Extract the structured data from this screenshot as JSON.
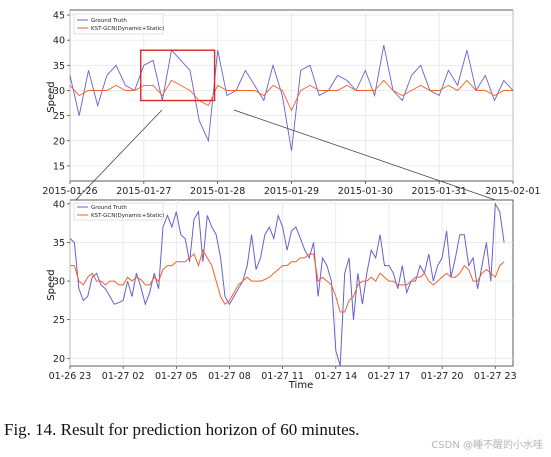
{
  "caption": "Fig. 14.   Result for prediction horizon of 60 minutes.",
  "watermark": "CSDN @睡不醒的小水哇",
  "colors": {
    "truth": "#6a5fd0",
    "pred": "#f0622b",
    "highlight": "#d42a2a",
    "grid": "#e3e3e3"
  },
  "chart_data": [
    {
      "type": "line",
      "title": "",
      "xlabel": "",
      "ylabel": "Speed",
      "xlim": [
        "2015-01-26 00:00",
        "2015-02-01 00:00"
      ],
      "ylim": [
        12,
        46
      ],
      "yticks": [
        15,
        20,
        25,
        30,
        35,
        40,
        45
      ],
      "xticks": [
        "2015-01-26",
        "2015-01-27",
        "2015-01-28",
        "2015-01-29",
        "2015-01-30",
        "2015-01-31",
        "2015-02-01"
      ],
      "grid": true,
      "legend_position": "top-left",
      "series": [
        {
          "name": "Ground Truth",
          "x_hours": [
            0,
            3,
            6,
            9,
            12,
            15,
            18,
            21,
            24,
            27,
            30,
            33,
            36,
            39,
            42,
            45,
            48,
            51,
            54,
            57,
            60,
            63,
            66,
            69,
            72,
            75,
            78,
            81,
            84,
            87,
            90,
            93,
            96,
            99,
            102,
            105,
            108,
            111,
            114,
            117,
            120,
            123,
            126,
            129,
            132,
            135,
            138,
            141,
            144
          ],
          "values": [
            33,
            25,
            34,
            27,
            33,
            35,
            31,
            30,
            35,
            36,
            28,
            38,
            36,
            34,
            24,
            20,
            38,
            29,
            30,
            34,
            31,
            28,
            35,
            29,
            18,
            34,
            35,
            29,
            30,
            33,
            32,
            30,
            34,
            29,
            39,
            30,
            28,
            33,
            35,
            30,
            29,
            34,
            31,
            38,
            30,
            33,
            28,
            32,
            30
          ]
        },
        {
          "name": "KST-GCN(Dynamic+Static)",
          "x_hours": [
            0,
            3,
            6,
            9,
            12,
            15,
            18,
            21,
            24,
            27,
            30,
            33,
            36,
            39,
            42,
            45,
            48,
            51,
            54,
            57,
            60,
            63,
            66,
            69,
            72,
            75,
            78,
            81,
            84,
            87,
            90,
            93,
            96,
            99,
            102,
            105,
            108,
            111,
            114,
            117,
            120,
            123,
            126,
            129,
            132,
            135,
            138,
            141,
            144
          ],
          "values": [
            31,
            29,
            30,
            30,
            30,
            31,
            30,
            30,
            31,
            31,
            29,
            32,
            31,
            30,
            28,
            27,
            31,
            30,
            30,
            30,
            30,
            29,
            31,
            30,
            26,
            30,
            31,
            30,
            30,
            30,
            31,
            30,
            30,
            30,
            32,
            30,
            29,
            30,
            31,
            30,
            30,
            31,
            30,
            32,
            30,
            30,
            29,
            30,
            30
          ]
        }
      ],
      "highlight_window": [
        "2015-01-26 23:00",
        "2015-01-27 23:00"
      ]
    },
    {
      "type": "line",
      "title": "",
      "xlabel": "Time",
      "ylabel": "Speed",
      "xlim": [
        "2015-01-26 23:00",
        "2015-01-28 00:00"
      ],
      "ylim": [
        19,
        40.5
      ],
      "yticks": [
        20,
        25,
        30,
        35,
        40
      ],
      "xticks": [
        "01-26 23",
        "01-27 02",
        "01-27 05",
        "01-27 08",
        "01-27 11",
        "01-27 14",
        "01-27 17",
        "01-27 20",
        "01-27 23"
      ],
      "grid": true,
      "legend_position": "top-left",
      "series": [
        {
          "name": "Ground Truth",
          "x_hours": [
            23,
            23.25,
            23.5,
            23.75,
            24,
            24.25,
            24.5,
            24.75,
            25,
            25.25,
            25.5,
            25.75,
            26,
            26.25,
            26.5,
            26.75,
            27,
            27.25,
            27.5,
            27.75,
            28,
            28.25,
            28.5,
            28.75,
            29,
            29.25,
            29.5,
            29.75,
            30,
            30.25,
            30.5,
            30.75,
            31,
            31.25,
            31.5,
            31.75,
            32,
            32.25,
            32.5,
            32.75,
            33,
            33.25,
            33.5,
            33.75,
            34,
            34.25,
            34.5,
            34.75,
            35,
            35.25,
            35.5,
            35.75,
            36,
            36.25,
            36.5,
            36.75,
            37,
            37.25,
            37.5,
            37.75,
            38,
            38.25,
            38.5,
            38.75,
            39,
            39.25,
            39.5,
            39.75,
            40,
            40.25,
            40.5,
            40.75,
            41,
            41.25,
            41.5,
            41.75,
            42,
            42.25,
            42.5,
            42.75,
            43,
            43.25,
            43.5,
            43.75,
            44,
            44.25,
            44.5,
            44.75,
            45,
            45.25,
            45.5,
            45.75,
            46,
            46.25,
            46.5,
            46.75,
            47,
            47.25,
            47.5
          ],
          "values": [
            35.5,
            35,
            29,
            27.5,
            28,
            30.5,
            31,
            29.5,
            29,
            28,
            27,
            27.2,
            27.5,
            30,
            28,
            31,
            29.2,
            27,
            28.5,
            31,
            29,
            37,
            38.5,
            37,
            39,
            36,
            35.5,
            32.5,
            38,
            39,
            32.5,
            38.5,
            37,
            36,
            33,
            28,
            27,
            28,
            29,
            30,
            32,
            36,
            31.5,
            33,
            36,
            37,
            35.5,
            38.5,
            37,
            34,
            36.5,
            37,
            35.5,
            34,
            33,
            35,
            28,
            33,
            32,
            30,
            21,
            19,
            31,
            33,
            25,
            31,
            27,
            31,
            34,
            33,
            36,
            32,
            32,
            31,
            29,
            32,
            28.5,
            30,
            30,
            32,
            31,
            33.5,
            30,
            32,
            33,
            36.5,
            30.5,
            33,
            36,
            36,
            32,
            33,
            29,
            32,
            35,
            30,
            40,
            39,
            35
          ]
        },
        {
          "name": "KST-GCN(Dynamic+Static)",
          "x_hours": [
            23,
            23.25,
            23.5,
            23.75,
            24,
            24.25,
            24.5,
            24.75,
            25,
            25.25,
            25.5,
            25.75,
            26,
            26.25,
            26.5,
            26.75,
            27,
            27.25,
            27.5,
            27.75,
            28,
            28.25,
            28.5,
            28.75,
            29,
            29.25,
            29.5,
            29.75,
            30,
            30.25,
            30.5,
            30.75,
            31,
            31.25,
            31.5,
            31.75,
            32,
            32.25,
            32.5,
            32.75,
            33,
            33.25,
            33.5,
            33.75,
            34,
            34.25,
            34.5,
            34.75,
            35,
            35.25,
            35.5,
            35.75,
            36,
            36.25,
            36.5,
            36.75,
            37,
            37.25,
            37.5,
            37.75,
            38,
            38.25,
            38.5,
            38.75,
            39,
            39.25,
            39.5,
            39.75,
            40,
            40.25,
            40.5,
            40.75,
            41,
            41.25,
            41.5,
            41.75,
            42,
            42.25,
            42.5,
            42.75,
            43,
            43.25,
            43.5,
            43.75,
            44,
            44.25,
            44.5,
            44.75,
            45,
            45.25,
            45.5,
            45.75,
            46,
            46.25,
            46.5,
            46.75,
            47,
            47.25,
            47.5
          ],
          "values": [
            32,
            32,
            30,
            29.5,
            30.5,
            31,
            30,
            30,
            29.5,
            30,
            30,
            29.5,
            29.5,
            30.5,
            30,
            30.5,
            30.2,
            29.5,
            29.5,
            30.5,
            30,
            31.5,
            32,
            32,
            32.5,
            32.5,
            32.5,
            33,
            33.5,
            32,
            34,
            33,
            32,
            30,
            28,
            27,
            27.5,
            28.5,
            29.5,
            30,
            30.5,
            30,
            30,
            30,
            30.2,
            30.5,
            31,
            31.5,
            32,
            32,
            32.5,
            32.5,
            33,
            33,
            33.5,
            33.5,
            30,
            30.5,
            30,
            29.5,
            28,
            26,
            26,
            27.5,
            28,
            29.5,
            30,
            30,
            30.5,
            30,
            31,
            30.5,
            30,
            30,
            29.5,
            29.5,
            29.5,
            30,
            30.5,
            30.5,
            31,
            30,
            29.5,
            30,
            30.5,
            31,
            30.5,
            30.5,
            31,
            32,
            31.5,
            30,
            30,
            31,
            31.5,
            31,
            30.5,
            32,
            32.5
          ]
        }
      ]
    }
  ]
}
